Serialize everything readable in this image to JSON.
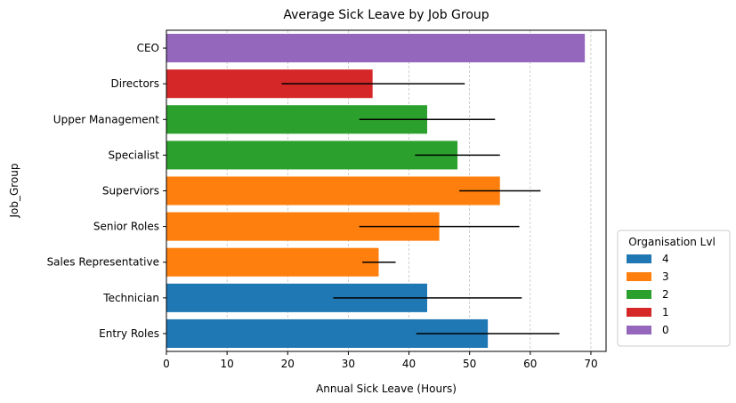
{
  "chart_data": {
    "type": "bar",
    "orientation": "horizontal",
    "title": "Average Sick Leave by Job Group",
    "xlabel": "Annual Sick Leave (Hours)",
    "ylabel": "Job_Group",
    "xlim": [
      0,
      72.5
    ],
    "x_ticks": [
      0,
      10,
      20,
      30,
      40,
      50,
      60,
      70
    ],
    "grid": "vertical dashed",
    "bars": [
      {
        "category": "Entry Roles",
        "value": 53,
        "error_low": 41.2,
        "error_high": 64.8,
        "level": "4"
      },
      {
        "category": "Technician",
        "value": 43,
        "error_low": 27.5,
        "error_high": 58.6,
        "level": "4"
      },
      {
        "category": "Sales Representative",
        "value": 35,
        "error_low": 32.3,
        "error_high": 37.8,
        "level": "3"
      },
      {
        "category": "Senior Roles",
        "value": 45,
        "error_low": 31.8,
        "error_high": 58.2,
        "level": "3"
      },
      {
        "category": "Superviors",
        "value": 55,
        "error_low": 48.3,
        "error_high": 61.7,
        "level": "3"
      },
      {
        "category": "Specialist",
        "value": 48,
        "error_low": 41.0,
        "error_high": 55.0,
        "level": "2"
      },
      {
        "category": "Upper Management",
        "value": 43,
        "error_low": 31.8,
        "error_high": 54.2,
        "level": "2"
      },
      {
        "category": "Directors",
        "value": 34,
        "error_low": 19.0,
        "error_high": 49.2,
        "level": "1"
      },
      {
        "category": "CEO",
        "value": 69,
        "error_low": null,
        "error_high": null,
        "level": "0"
      }
    ],
    "legend": {
      "title": "Organisation Lvl",
      "placement": "lower-right-outside",
      "entries": [
        {
          "label": "4",
          "color": "#1f77b4"
        },
        {
          "label": "3",
          "color": "#ff7f0e"
        },
        {
          "label": "2",
          "color": "#2ca02c"
        },
        {
          "label": "1",
          "color": "#d62728"
        },
        {
          "label": "0",
          "color": "#9467bd"
        }
      ]
    }
  }
}
